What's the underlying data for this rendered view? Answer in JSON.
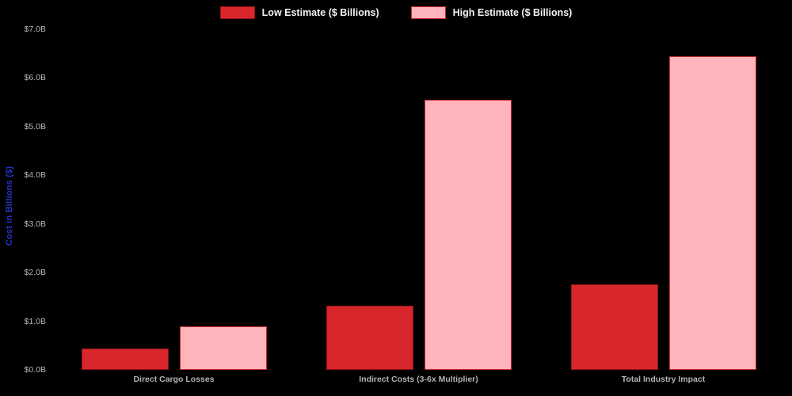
{
  "background_color": "#000000",
  "chart_data": {
    "type": "bar",
    "title": "",
    "categories": [
      "Direct Cargo Losses",
      "Indirect Costs (3-6x Multiplier)",
      "Total Industry Impact"
    ],
    "series": [
      {
        "name": "Low Estimate ($ Billions)",
        "color": "#d9262c",
        "border_color": "#8f151b",
        "values": [
          0.44,
          1.32,
          1.76
        ]
      },
      {
        "name": "High Estimate ($ Billions)",
        "color": "#ffb3ba",
        "border_color": "#c42830",
        "values": [
          0.9,
          5.55,
          6.45
        ]
      }
    ],
    "xlabel": "",
    "ylabel": "Cost in Billions ($)",
    "ylabel_color": "#2236c8",
    "ylim": [
      0,
      7
    ],
    "ytick_values": [
      0,
      1,
      2,
      3,
      4,
      5,
      6,
      7
    ],
    "ytick_labels": [
      "$0.0B",
      "$1.0B",
      "$2.0B",
      "$3.0B",
      "$4.0B",
      "$5.0B",
      "$6.0B",
      "$7.0B"
    ],
    "grid": false,
    "legend_position": "top-center",
    "tick_label_color": "#b8b8b8",
    "category_label_color": "#b3b3b3",
    "legend_text_color": "#f2f2f2"
  }
}
